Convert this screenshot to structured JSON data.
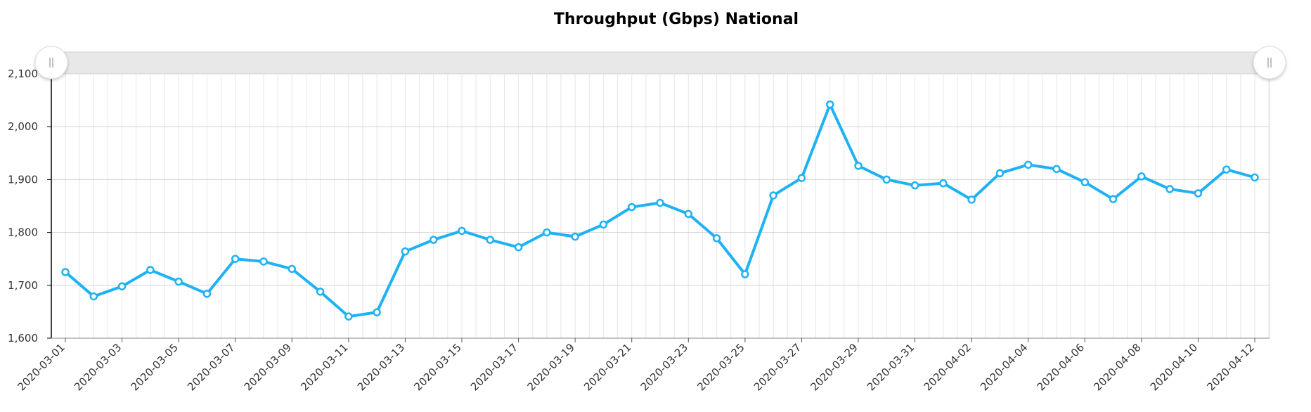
{
  "chart_data": {
    "type": "line",
    "title": "Throughput (Gbps) National",
    "xlabel": "",
    "ylabel": "",
    "ylim": [
      1600,
      2100
    ],
    "yticks": [
      "1,600",
      "1,700",
      "1,800",
      "1,900",
      "2,000",
      "2,100"
    ],
    "grid": true,
    "line_color": "#1eb2f5",
    "x": [
      "2020-03-01",
      "2020-03-02",
      "2020-03-03",
      "2020-03-04",
      "2020-03-05",
      "2020-03-06",
      "2020-03-07",
      "2020-03-08",
      "2020-03-09",
      "2020-03-10",
      "2020-03-11",
      "2020-03-12",
      "2020-03-13",
      "2020-03-14",
      "2020-03-15",
      "2020-03-16",
      "2020-03-17",
      "2020-03-18",
      "2020-03-19",
      "2020-03-20",
      "2020-03-21",
      "2020-03-22",
      "2020-03-23",
      "2020-03-24",
      "2020-03-25",
      "2020-03-26",
      "2020-03-27",
      "2020-03-28",
      "2020-03-29",
      "2020-03-30",
      "2020-03-31",
      "2020-04-01",
      "2020-04-02",
      "2020-04-03",
      "2020-04-04",
      "2020-04-05",
      "2020-04-06",
      "2020-04-07",
      "2020-04-08",
      "2020-04-09",
      "2020-04-10",
      "2020-04-11",
      "2020-04-12"
    ],
    "values": [
      1725,
      1679,
      1698,
      1729,
      1707,
      1684,
      1750,
      1745,
      1731,
      1688,
      1641,
      1649,
      1764,
      1786,
      1803,
      1786,
      1772,
      1800,
      1792,
      1815,
      1848,
      1856,
      1835,
      1789,
      1721,
      1870,
      1903,
      2042,
      1926,
      1900,
      1889,
      1893,
      1862,
      1912,
      1928,
      1920,
      1895,
      1863,
      1906,
      1882,
      1874,
      1919,
      1904
    ],
    "xtick_labels": [
      "2020-03-01",
      "2020-03-03",
      "2020-03-05",
      "2020-03-07",
      "2020-03-09",
      "2020-03-11",
      "2020-03-13",
      "2020-03-15",
      "2020-03-17",
      "2020-03-19",
      "2020-03-21",
      "2020-03-23",
      "2020-03-25",
      "2020-03-27",
      "2020-03-29",
      "2020-03-31",
      "2020-04-02",
      "2020-04-04",
      "2020-04-06",
      "2020-04-08",
      "2020-04-10",
      "2020-04-12"
    ]
  },
  "scrollbar": {
    "left_handle_icon": "grip-icon",
    "right_handle_icon": "grip-icon"
  }
}
